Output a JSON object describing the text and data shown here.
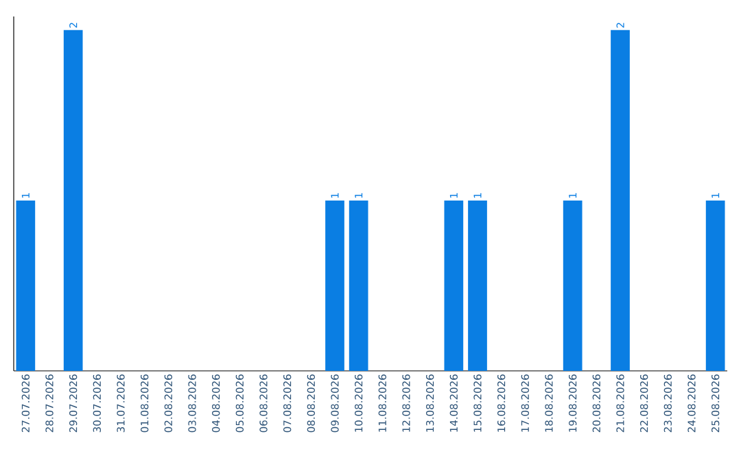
{
  "chart_data": {
    "type": "bar",
    "categories": [
      "27.07.2026",
      "28.07.2026",
      "29.07.2026",
      "30.07.2026",
      "31.07.2026",
      "01.08.2026",
      "02.08.2026",
      "03.08.2026",
      "04.08.2026",
      "05.08.2026",
      "06.08.2026",
      "07.08.2026",
      "08.08.2026",
      "09.08.2026",
      "10.08.2026",
      "11.08.2026",
      "12.08.2026",
      "13.08.2026",
      "14.08.2026",
      "15.08.2026",
      "16.08.2026",
      "17.08.2026",
      "18.08.2026",
      "19.08.2026",
      "20.08.2026",
      "21.08.2026",
      "22.08.2026",
      "23.08.2026",
      "24.08.2026",
      "25.08.2026"
    ],
    "values": [
      1,
      0,
      2,
      0,
      0,
      0,
      0,
      0,
      0,
      0,
      0,
      0,
      0,
      1,
      1,
      0,
      0,
      0,
      1,
      1,
      0,
      0,
      0,
      1,
      0,
      2,
      0,
      0,
      0,
      1
    ],
    "value_labels": [
      "1",
      null,
      "2",
      null,
      null,
      null,
      null,
      null,
      null,
      null,
      null,
      null,
      null,
      "1",
      "1",
      null,
      null,
      null,
      "1",
      "1",
      null,
      null,
      null,
      "1",
      null,
      "2",
      null,
      null,
      null,
      "1"
    ],
    "color": "#0a7ee3"
  }
}
